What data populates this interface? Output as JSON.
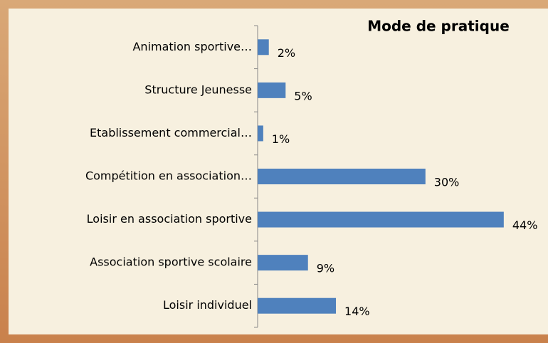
{
  "chart_data": {
    "type": "bar",
    "orientation": "horizontal",
    "title": "Mode de pratique",
    "categories": [
      "Animation sportive…",
      "Structure Jeunesse",
      "Etablissement commercial…",
      "Compétition en association…",
      "Loisir en association sportive",
      "Association sportive scolaire",
      "Loisir individuel"
    ],
    "values": [
      2,
      5,
      1,
      30,
      44,
      9,
      14
    ],
    "value_labels": [
      "2%",
      "5%",
      "1%",
      "30%",
      "44%",
      "9%",
      "14%"
    ],
    "color": "#4f81bd"
  }
}
